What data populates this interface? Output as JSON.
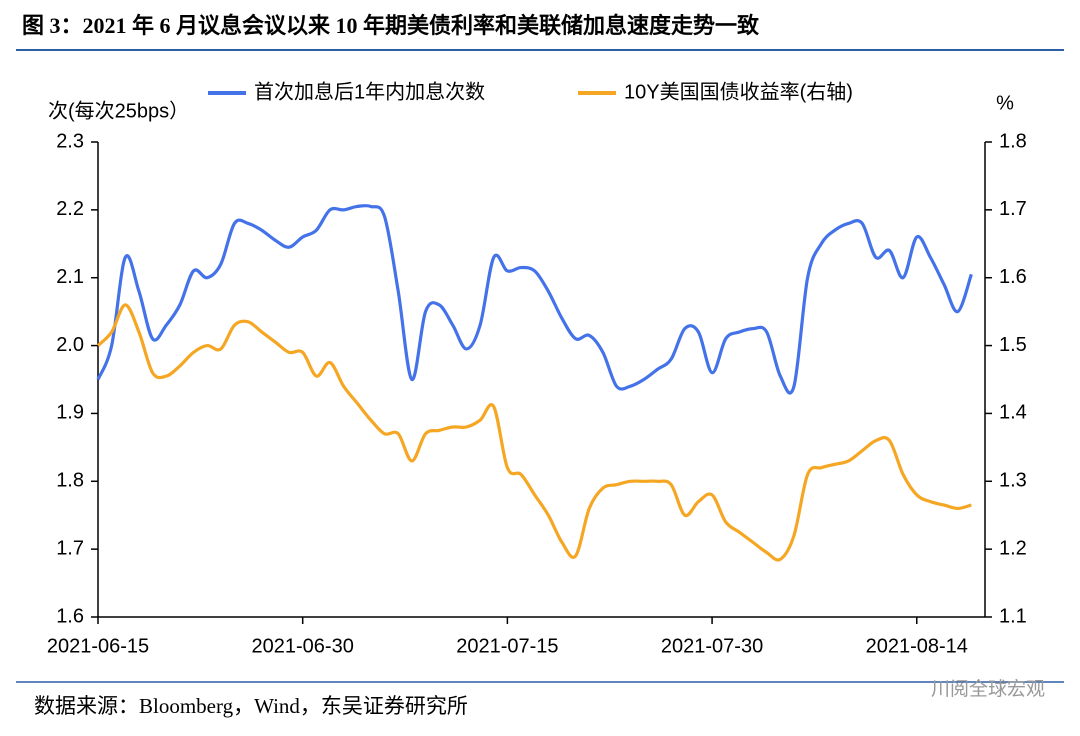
{
  "chart_data": {
    "type": "line",
    "title": "图 3：2021 年 6 月议息会议以来 10 年期美债利率和美联储加息速度走势一致",
    "y_label": "次(每次25bps）",
    "y2_label": "%",
    "source": "数据来源：Bloomberg，Wind，东吴证券研究所",
    "watermark": "川阅全球宏观",
    "x": [
      "2021-06-15",
      "2021-06-16",
      "2021-06-17",
      "2021-06-18",
      "2021-06-19",
      "2021-06-20",
      "2021-06-21",
      "2021-06-22",
      "2021-06-23",
      "2021-06-24",
      "2021-06-25",
      "2021-06-26",
      "2021-06-27",
      "2021-06-28",
      "2021-06-29",
      "2021-06-30",
      "2021-07-01",
      "2021-07-02",
      "2021-07-03",
      "2021-07-04",
      "2021-07-05",
      "2021-07-06",
      "2021-07-07",
      "2021-07-08",
      "2021-07-09",
      "2021-07-10",
      "2021-07-11",
      "2021-07-12",
      "2021-07-13",
      "2021-07-14",
      "2021-07-15",
      "2021-07-16",
      "2021-07-17",
      "2021-07-18",
      "2021-07-19",
      "2021-07-20",
      "2021-07-21",
      "2021-07-22",
      "2021-07-23",
      "2021-07-24",
      "2021-07-25",
      "2021-07-26",
      "2021-07-27",
      "2021-07-28",
      "2021-07-29",
      "2021-07-30",
      "2021-07-31",
      "2021-08-01",
      "2021-08-02",
      "2021-08-03",
      "2021-08-04",
      "2021-08-05",
      "2021-08-06",
      "2021-08-07",
      "2021-08-08",
      "2021-08-09",
      "2021-08-10",
      "2021-08-11",
      "2021-08-12",
      "2021-08-13",
      "2021-08-14",
      "2021-08-15",
      "2021-08-16",
      "2021-08-17",
      "2021-08-18"
    ],
    "xlim": [
      "2021-06-15",
      "2021-08-19"
    ],
    "xticks": [
      "2021-06-15",
      "2021-06-30",
      "2021-07-15",
      "2021-07-30",
      "2021-08-14"
    ],
    "ylim": [
      1.6,
      2.3
    ],
    "yticks": [
      {
        "value": 1.6,
        "label": "1.6"
      },
      {
        "value": 1.7,
        "label": "1.7"
      },
      {
        "value": 1.8,
        "label": "1.8"
      },
      {
        "value": 1.9,
        "label": "1.9"
      },
      {
        "value": 2.0,
        "label": "2.0"
      },
      {
        "value": 2.1,
        "label": "2.1"
      },
      {
        "value": 2.2,
        "label": "2.2"
      },
      {
        "value": 2.3,
        "label": "2.3"
      }
    ],
    "y2lim": [
      1.1,
      1.8
    ],
    "y2ticks": [
      {
        "value": 1.1,
        "label": "1.1"
      },
      {
        "value": 1.2,
        "label": "1.2"
      },
      {
        "value": 1.3,
        "label": "1.3"
      },
      {
        "value": 1.4,
        "label": "1.4"
      },
      {
        "value": 1.5,
        "label": "1.5"
      },
      {
        "value": 1.6,
        "label": "1.6"
      },
      {
        "value": 1.7,
        "label": "1.7"
      },
      {
        "value": 1.8,
        "label": "1.8"
      }
    ],
    "legend": "top",
    "series": [
      {
        "name": "首次加息后1年内加息次数",
        "color": "#4472e8",
        "values": [
          1.95,
          2.0,
          2.13,
          2.08,
          2.01,
          2.03,
          2.06,
          2.11,
          2.1,
          2.12,
          2.18,
          2.18,
          2.17,
          2.155,
          2.145,
          2.16,
          2.17,
          2.2,
          2.2,
          2.205,
          2.205,
          2.19,
          2.08,
          1.95,
          2.05,
          2.06,
          2.03,
          1.995,
          2.03,
          2.13,
          2.11,
          2.115,
          2.11,
          2.08,
          2.04,
          2.01,
          2.015,
          1.99,
          1.94,
          1.94,
          1.95,
          1.965,
          1.98,
          2.025,
          2.02,
          1.96,
          2.01,
          2.02,
          2.025,
          2.02,
          1.955,
          1.94,
          2.1,
          2.15,
          2.17,
          2.18,
          2.18,
          2.13,
          2.14,
          2.1,
          2.16,
          2.13,
          2.09,
          2.05,
          2.105
        ]
      },
      {
        "name": "10Y美国国债收益率(右轴)",
        "color": "#f5a623",
        "axis": "y2",
        "values": [
          1.5,
          1.52,
          1.56,
          1.52,
          1.46,
          1.455,
          1.47,
          1.49,
          1.5,
          1.495,
          1.53,
          1.535,
          1.52,
          1.505,
          1.49,
          1.49,
          1.455,
          1.475,
          1.44,
          1.415,
          1.39,
          1.37,
          1.37,
          1.33,
          1.37,
          1.375,
          1.38,
          1.38,
          1.39,
          1.41,
          1.32,
          1.31,
          1.28,
          1.25,
          1.21,
          1.19,
          1.26,
          1.29,
          1.295,
          1.3,
          1.3,
          1.3,
          1.295,
          1.25,
          1.27,
          1.28,
          1.24,
          1.225,
          1.21,
          1.195,
          1.185,
          1.22,
          1.31,
          1.32,
          1.325,
          1.33,
          1.345,
          1.36,
          1.36,
          1.31,
          1.28,
          1.27,
          1.265,
          1.26,
          1.265
        ]
      }
    ]
  }
}
